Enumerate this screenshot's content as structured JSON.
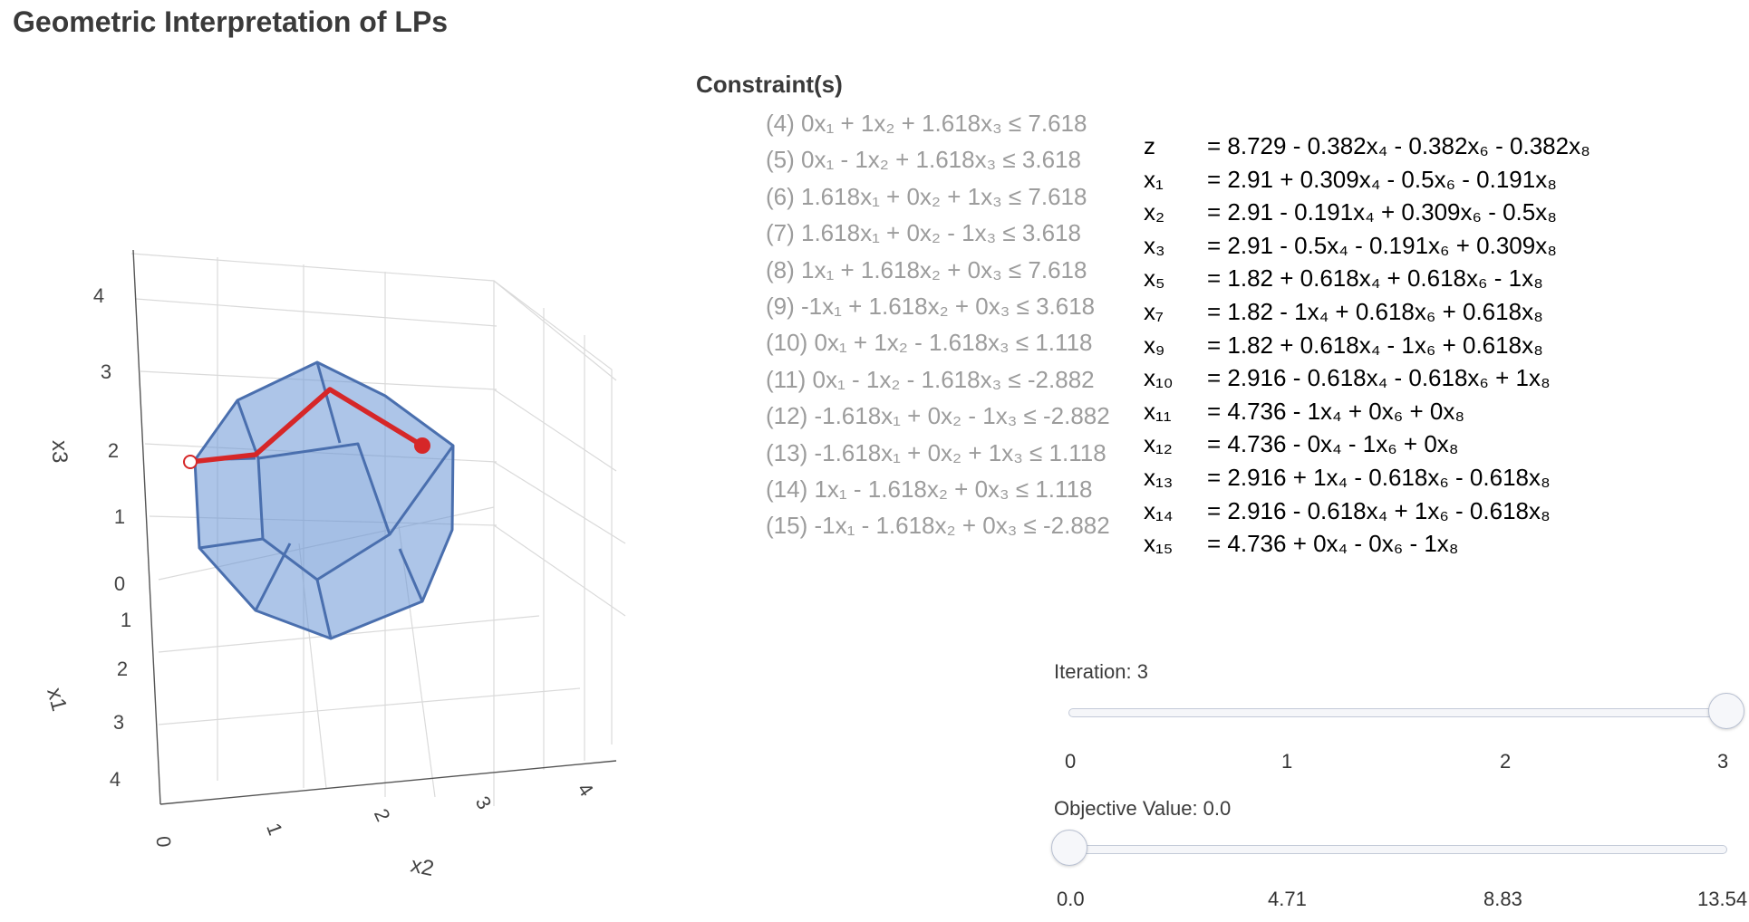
{
  "title": "Geometric Interpretation of LPs",
  "plot": {
    "axis_x1_title": "x1",
    "axis_x2_title": "x2",
    "axis_x3_title": "x3",
    "x3_ticks": [
      "0",
      "1",
      "2",
      "3",
      "4"
    ],
    "x1_ticks": [
      "1",
      "2",
      "3",
      "4"
    ],
    "x2_ticks": [
      "0",
      "1",
      "2",
      "3",
      "4"
    ],
    "polytope_color": "#4a7cc0",
    "path_color": "#d62728"
  },
  "constraints_heading": "Constraint(s)",
  "constraints": [
    "(4) 0x₁ + 1x₂ + 1.618x₃ ≤ 7.618",
    "(5) 0x₁ - 1x₂ + 1.618x₃ ≤ 3.618",
    "(6) 1.618x₁ + 0x₂ + 1x₃ ≤ 7.618",
    "(7) 1.618x₁ + 0x₂ - 1x₃ ≤ 3.618",
    "(8) 1x₁ + 1.618x₂ + 0x₃ ≤ 7.618",
    "(9) -1x₁ + 1.618x₂ + 0x₃ ≤ 3.618",
    "(10) 0x₁ + 1x₂ - 1.618x₃ ≤ 1.118",
    "(11) 0x₁ - 1x₂ - 1.618x₃ ≤ -2.882",
    "(12) -1.618x₁ + 0x₂ - 1x₃ ≤ -2.882",
    "(13) -1.618x₁ + 0x₂ + 1x₃ ≤ 1.118",
    "(14) 1x₁ - 1.618x₂ + 0x₃ ≤ 1.118",
    "(15) -1x₁ - 1.618x₂ + 0x₃ ≤ -2.882"
  ],
  "dictionary": [
    {
      "lhs": "z",
      "rhs": "= 8.729 - 0.382x₄ - 0.382x₆ - 0.382x₈"
    },
    {
      "lhs": "x₁",
      "rhs": "= 2.91 + 0.309x₄ - 0.5x₆ - 0.191x₈"
    },
    {
      "lhs": "x₂",
      "rhs": "= 2.91 - 0.191x₄ + 0.309x₆ - 0.5x₈"
    },
    {
      "lhs": "x₃",
      "rhs": "= 2.91 - 0.5x₄ - 0.191x₆ + 0.309x₈"
    },
    {
      "lhs": "x₅",
      "rhs": "= 1.82 + 0.618x₄ + 0.618x₆ - 1x₈"
    },
    {
      "lhs": "x₇",
      "rhs": "= 1.82 - 1x₄ + 0.618x₆ + 0.618x₈"
    },
    {
      "lhs": "x₉",
      "rhs": "= 1.82 + 0.618x₄ - 1x₆ + 0.618x₈"
    },
    {
      "lhs": "x₁₀",
      "rhs": "= 2.916 - 0.618x₄ - 0.618x₆ + 1x₈"
    },
    {
      "lhs": "x₁₁",
      "rhs": "= 4.736 - 1x₄ + 0x₆ + 0x₈"
    },
    {
      "lhs": "x₁₂",
      "rhs": "= 4.736 - 0x₄ - 1x₆ + 0x₈"
    },
    {
      "lhs": "x₁₃",
      "rhs": "= 2.916 + 1x₄ - 0.618x₆ - 0.618x₈"
    },
    {
      "lhs": "x₁₄",
      "rhs": "= 2.916 - 0.618x₄ + 1x₆ - 0.618x₈"
    },
    {
      "lhs": "x₁₅",
      "rhs": "= 4.736 + 0x₄ - 0x₆ - 1x₈"
    }
  ],
  "iteration_slider": {
    "label": "Iteration: 3",
    "value": 3,
    "min": 0,
    "max": 3,
    "ticks": [
      "0",
      "1",
      "2",
      "3"
    ]
  },
  "objective_slider": {
    "label": "Objective Value: 0.0",
    "value": 0.0,
    "min": 0.0,
    "max": 13.54,
    "ticks": [
      "0.0",
      "4.71",
      "8.83",
      "13.54"
    ]
  }
}
